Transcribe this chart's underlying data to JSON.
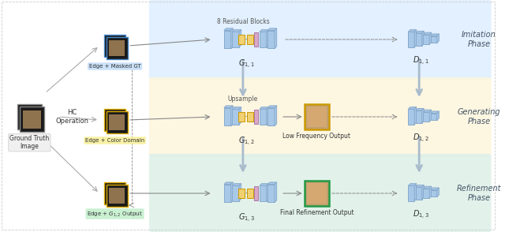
{
  "fig_width": 6.4,
  "fig_height": 2.94,
  "bg_color": "#ffffff",
  "phase_colors": {
    "imitation": "#ddeeff",
    "generating": "#fdf5dc",
    "refinement": "#ddf0e8"
  },
  "phase_labels": [
    "Imitation\nPhase",
    "Generating\nPhase",
    "Refinement\nPhase"
  ],
  "G_labels": [
    "$G_{1,1}$",
    "$G_{1,2}$",
    "$G_{1,3}$"
  ],
  "D_labels": [
    "$D_{1,1}$",
    "$D_{1,2}$",
    "$D_{1,3}$"
  ],
  "input_labels": [
    "Edge + Masked GT",
    "Edge + Color Domain",
    "Edge + $G_{1,2}$ Output"
  ],
  "misc_labels": [
    "8 Residual Blocks",
    "Upsample",
    "Low Frequency Output",
    "Final Refinement Output"
  ],
  "left_labels": [
    "Ground Truth\nImage",
    "HC\nOperation"
  ],
  "block_color_blue": "#a8c8e8",
  "block_color_blue_dark": "#88aacc",
  "block_color_yellow": "#f0d070",
  "block_color_pink": "#d8a8c8",
  "label_bg_blue": "#c8e0f8",
  "label_bg_yellow": "#f8f0a0",
  "label_bg_green": "#c8f0d0"
}
